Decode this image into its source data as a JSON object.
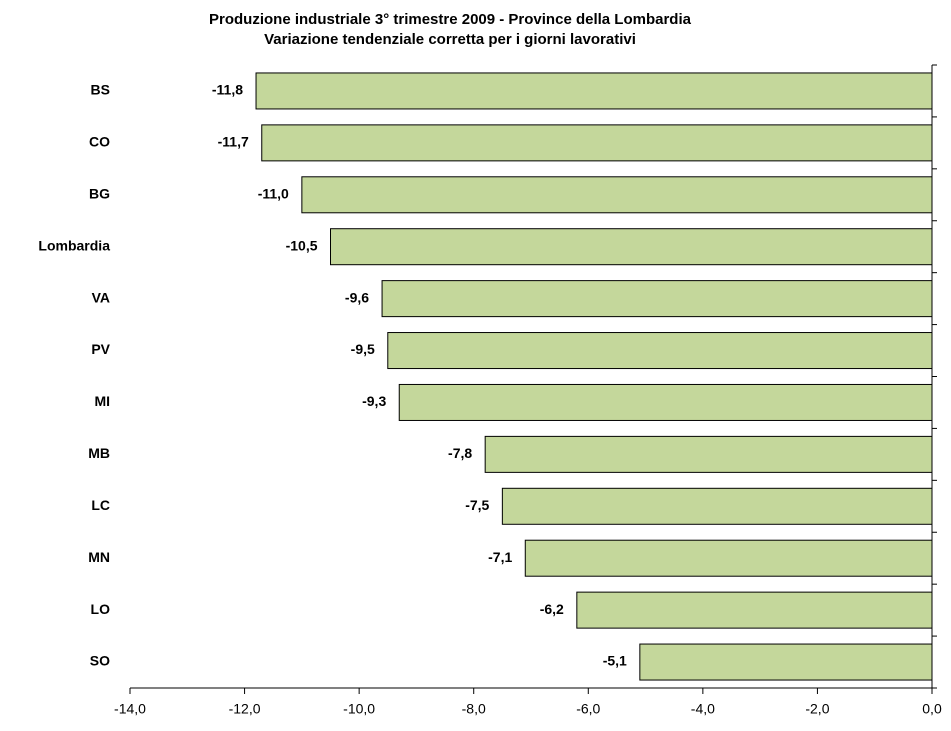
{
  "chart_data": {
    "type": "bar",
    "orientation": "horizontal",
    "title": "Produzione industriale 3° trimestre 2009 - Province della Lombardia",
    "subtitle": "Variazione tendenziale corretta per i giorni lavorativi",
    "categories": [
      "BS",
      "CO",
      "BG",
      "Lombardia",
      "VA",
      "PV",
      "MI",
      "MB",
      "LC",
      "MN",
      "LO",
      "SO"
    ],
    "values": [
      -11.8,
      -11.7,
      -11.0,
      -10.5,
      -9.6,
      -9.5,
      -9.3,
      -7.8,
      -7.5,
      -7.1,
      -6.2,
      -5.1
    ],
    "value_labels": [
      "-11,8",
      "-11,7",
      "-11,0",
      "-10,5",
      "-9,6",
      "-9,5",
      "-9,3",
      "-7,8",
      "-7,5",
      "-7,1",
      "-6,2",
      "-5,1"
    ],
    "color": "#c4d79b",
    "xlim": [
      -14,
      0
    ],
    "xticks": [
      {
        "value": -14,
        "label": "-14,0"
      },
      {
        "value": -12,
        "label": "-12,0"
      },
      {
        "value": -10,
        "label": "-10,0"
      },
      {
        "value": -8,
        "label": "-8,0"
      },
      {
        "value": -6,
        "label": "-6,0"
      },
      {
        "value": -4,
        "label": "-4,0"
      },
      {
        "value": -2,
        "label": "-2,0"
      },
      {
        "value": 0,
        "label": "0,0"
      }
    ],
    "grid": false
  }
}
